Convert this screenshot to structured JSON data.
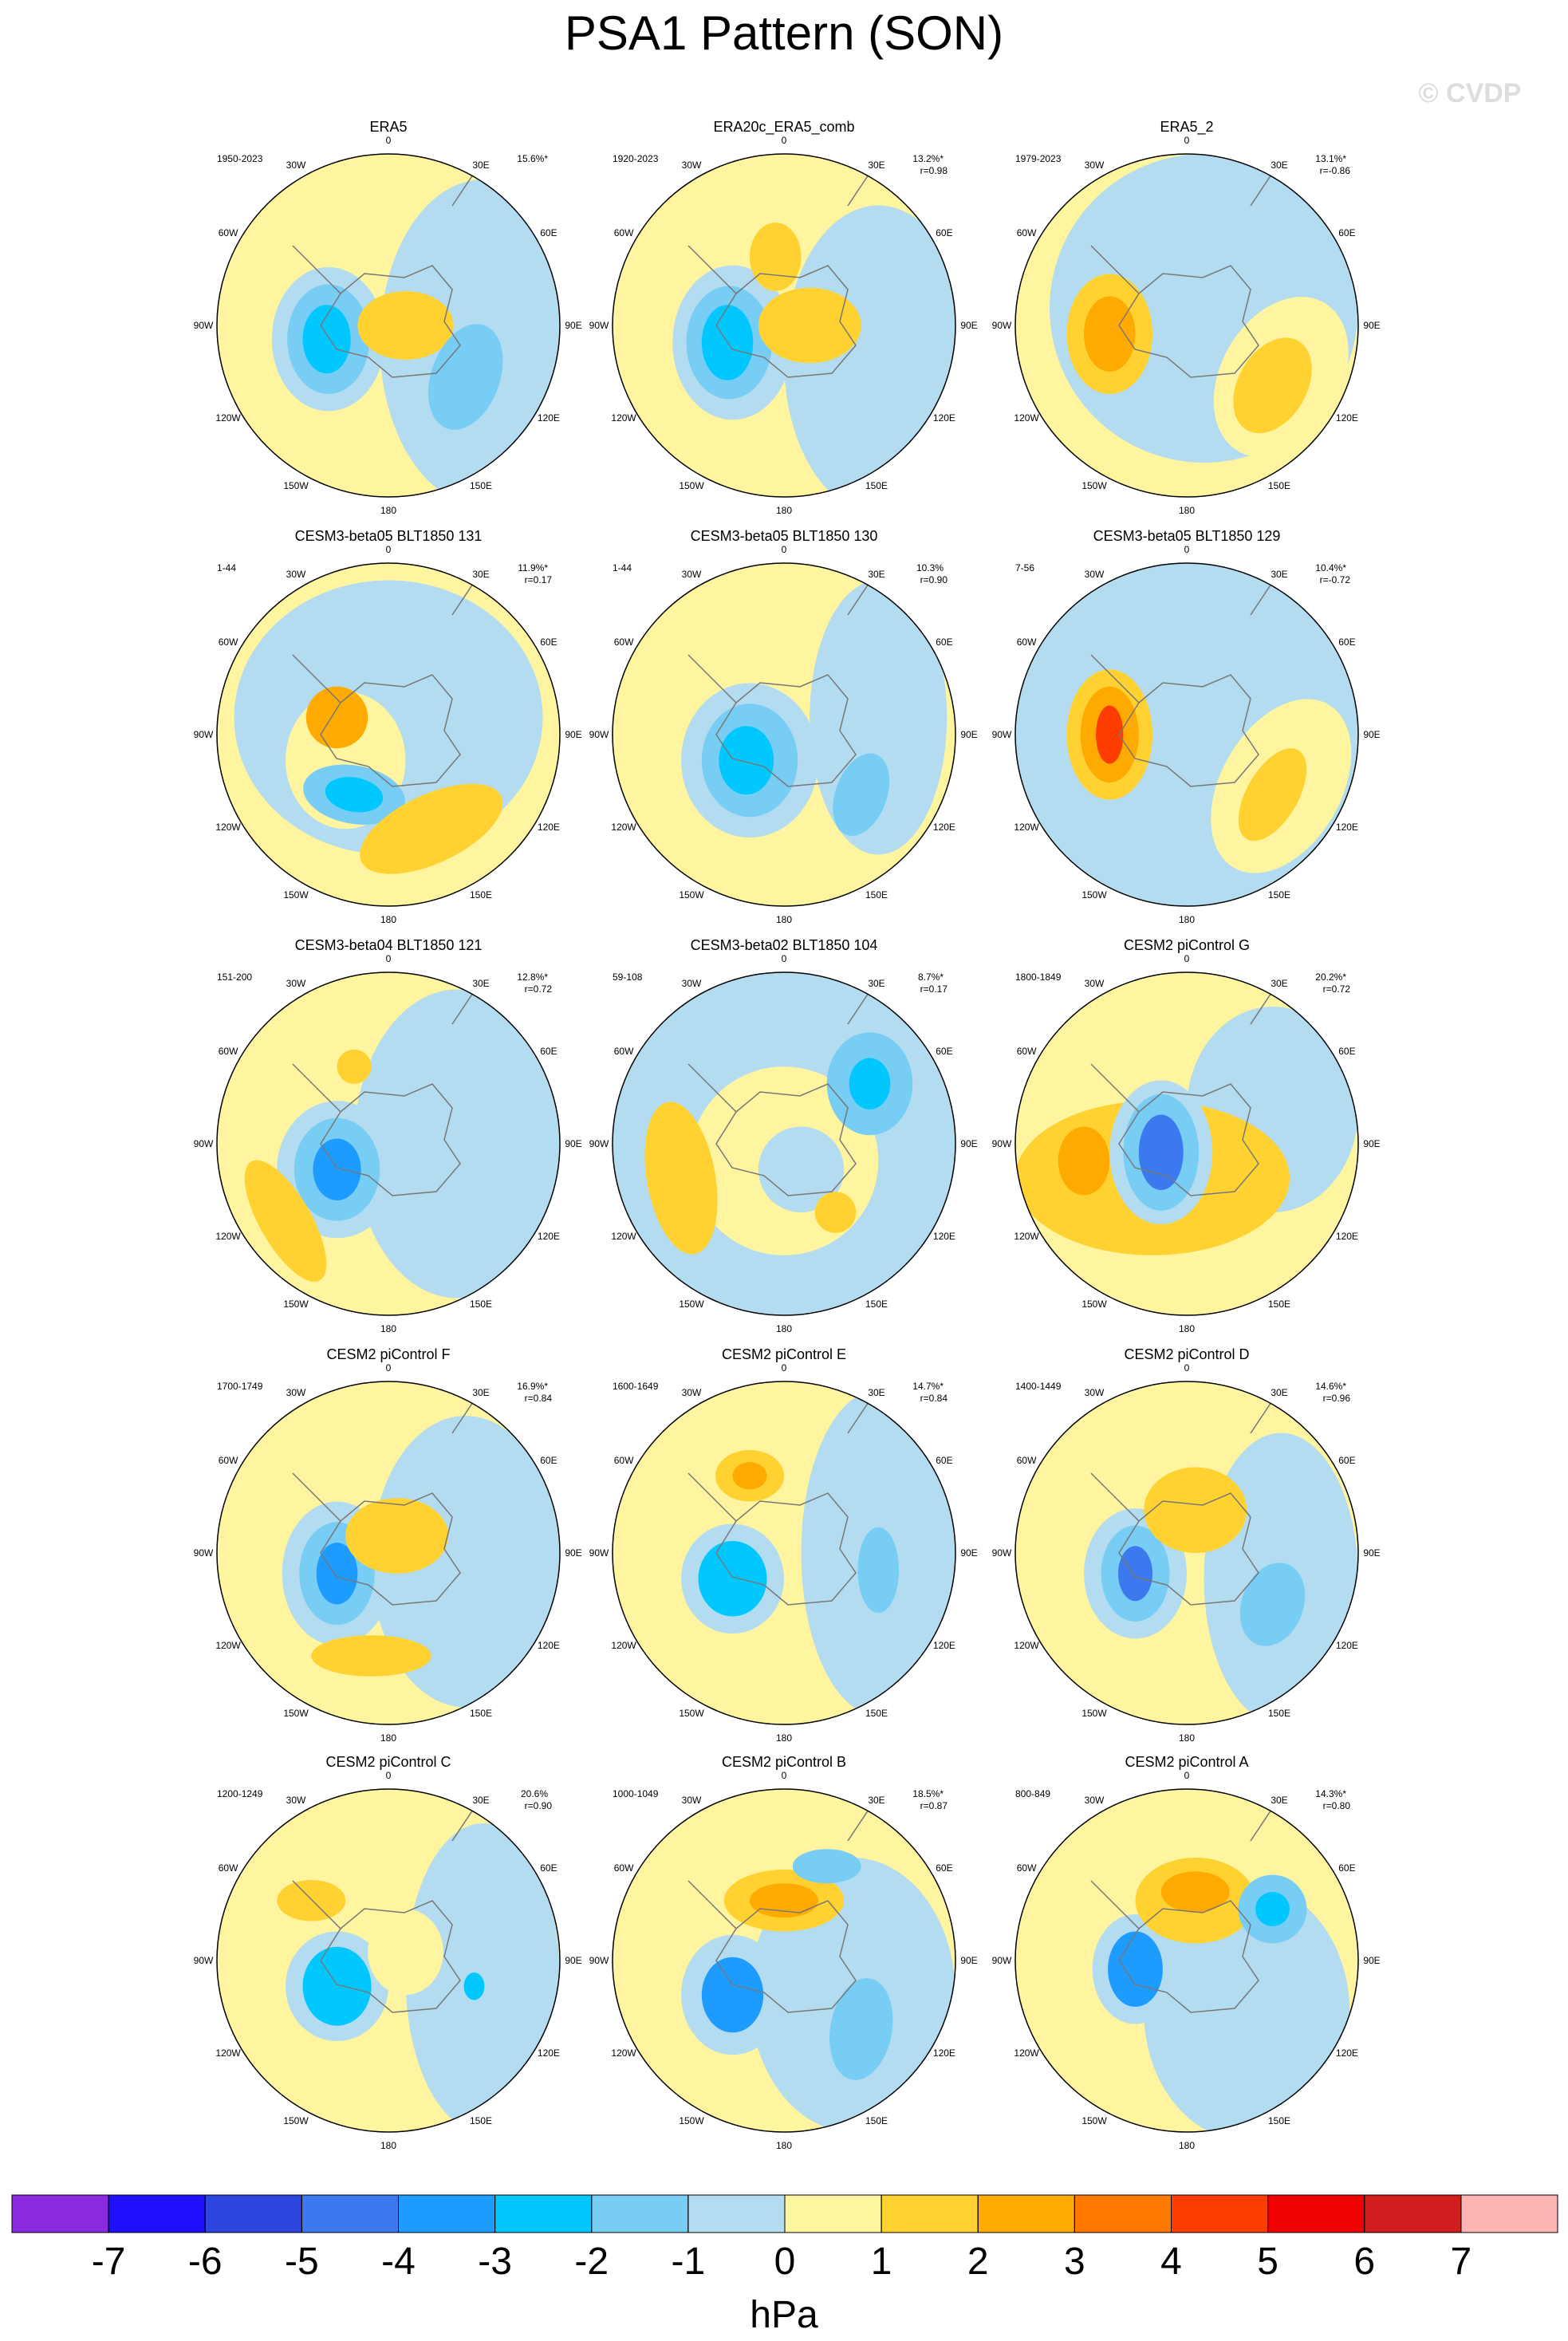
{
  "header": {
    "title": "PSA1 Pattern (SON)",
    "watermark": "© CVDP"
  },
  "longitude_labels": [
    "0",
    "30E",
    "60E",
    "90E",
    "120E",
    "150E",
    "180",
    "150W",
    "120W",
    "90W",
    "60W",
    "30W"
  ],
  "panels": [
    {
      "title": "ERA5",
      "period": "1950-2023",
      "variance": "15.6%*",
      "r": null
    },
    {
      "title": "ERA20c_ERA5_comb",
      "period": "1920-2023",
      "variance": "13.2%*",
      "r": "r=0.98"
    },
    {
      "title": "ERA5_2",
      "period": "1979-2023",
      "variance": "13.1%*",
      "r": "r=-0.86"
    },
    {
      "title": "CESM3-beta05 BLT1850 131",
      "period": "1-44",
      "variance": "11.9%*",
      "r": "r=0.17"
    },
    {
      "title": "CESM3-beta05 BLT1850 130",
      "period": "1-44",
      "variance": "10.3%",
      "r": "r=0.90"
    },
    {
      "title": "CESM3-beta05 BLT1850 129",
      "period": "7-56",
      "variance": "10.4%*",
      "r": "r=-0.72"
    },
    {
      "title": "CESM3-beta04 BLT1850 121",
      "period": "151-200",
      "variance": "12.8%*",
      "r": "r=0.72"
    },
    {
      "title": "CESM3-beta02 BLT1850 104",
      "period": "59-108",
      "variance": "8.7%*",
      "r": "r=0.17"
    },
    {
      "title": "CESM2 piControl G",
      "period": "1800-1849",
      "variance": "20.2%*",
      "r": "r=0.72"
    },
    {
      "title": "CESM2 piControl F",
      "period": "1700-1749",
      "variance": "16.9%*",
      "r": "r=0.84"
    },
    {
      "title": "CESM2 piControl E",
      "period": "1600-1649",
      "variance": "14.7%*",
      "r": "r=0.84"
    },
    {
      "title": "CESM2 piControl D",
      "period": "1400-1449",
      "variance": "14.6%*",
      "r": "r=0.96"
    },
    {
      "title": "CESM2 piControl C",
      "period": "1200-1249",
      "variance": "20.6%",
      "r": "r=0.90"
    },
    {
      "title": "CESM2 piControl B",
      "period": "1000-1049",
      "variance": "18.5%*",
      "r": "r=0.87"
    },
    {
      "title": "CESM2 piControl A",
      "period": "800-849",
      "variance": "14.3%*",
      "r": "r=0.80"
    }
  ],
  "colorbar": {
    "colors": [
      "#8a2be2",
      "#1e10ff",
      "#2d46e0",
      "#3c78ee",
      "#1e9bff",
      "#00c8ff",
      "#78cdf5",
      "#b4dcf0",
      "#fff5a0",
      "#ffd232",
      "#ffaa00",
      "#ff7800",
      "#ff3c00",
      "#f00000",
      "#d21e1e",
      "#ffb4b4"
    ],
    "ticks": [
      -7,
      -6,
      -5,
      -4,
      -3,
      -2,
      -1,
      0,
      1,
      2,
      3,
      4,
      5,
      6,
      7
    ],
    "unit": "hPa"
  }
}
